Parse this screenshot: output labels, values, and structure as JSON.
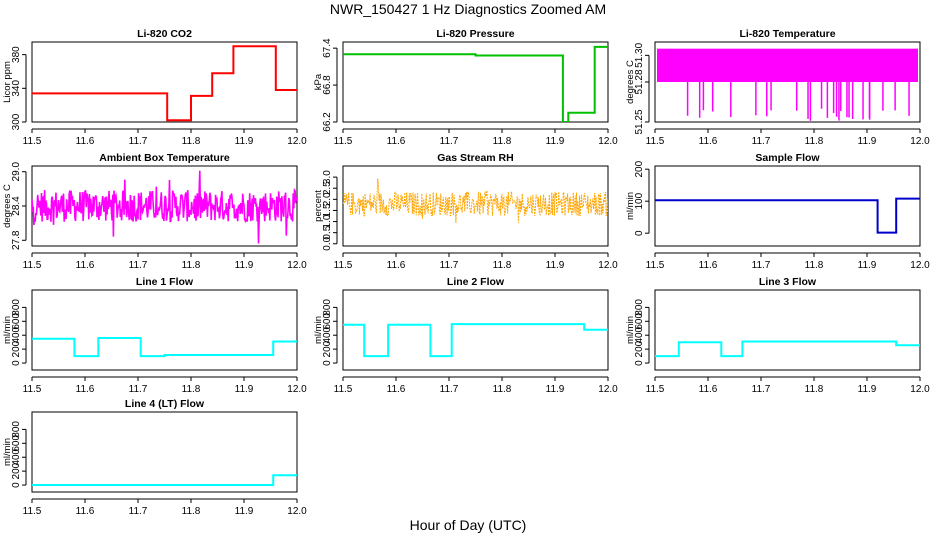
{
  "title": "NWR_150427  1 Hz Diagnostics Zoomed AM",
  "xlabel": "Hour of Day (UTC)",
  "chart_data": [
    {
      "type": "line",
      "title": "Li-820 CO2",
      "ylabel": "Licor ppm",
      "color": "#ff0000",
      "xlim": [
        11.5,
        12.0
      ],
      "ylim": [
        300,
        395
      ],
      "xticks": [
        11.5,
        11.6,
        11.7,
        11.8,
        11.9,
        12.0
      ],
      "yticks": [
        300,
        340,
        380
      ],
      "series": [
        {
          "x": [
            11.5,
            11.755,
            11.755,
            11.8,
            11.8,
            11.84,
            11.84,
            11.88,
            11.88,
            11.96,
            11.96,
            12.0
          ],
          "y": [
            334,
            334,
            302,
            302,
            331,
            331,
            358,
            358,
            390,
            390,
            338,
            338
          ]
        }
      ]
    },
    {
      "type": "line",
      "title": "Li-820 Pressure",
      "ylabel": "kPa",
      "color": "#00c000",
      "xlim": [
        11.5,
        12.0
      ],
      "ylim": [
        66.2,
        67.5
      ],
      "xticks": [
        11.5,
        11.6,
        11.7,
        11.8,
        11.9,
        12.0
      ],
      "yticks": [
        66.2,
        66.8,
        67.4
      ],
      "series": [
        {
          "x": [
            11.5,
            11.75,
            11.75,
            11.915,
            11.915,
            11.925,
            11.925,
            11.96,
            11.96,
            11.975,
            11.975,
            12.0
          ],
          "y": [
            67.3,
            67.3,
            67.28,
            67.28,
            66.2,
            66.2,
            66.35,
            66.35,
            66.35,
            66.35,
            67.42,
            67.42
          ]
        }
      ]
    },
    {
      "type": "line",
      "title": "Li-820 Temperature",
      "ylabel": "degrees C",
      "color": "#ff00ff",
      "xlim": [
        11.5,
        12.0
      ],
      "ylim": [
        51.25,
        51.31
      ],
      "xticks": [
        11.5,
        11.6,
        11.7,
        11.8,
        11.9,
        12.0
      ],
      "yticks": [
        51.25,
        51.28,
        51.3
      ],
      "series": [
        {
          "x": [
            11.5,
            12.0
          ],
          "y": [
            51.29,
            51.29
          ]
        }
      ]
    },
    {
      "type": "line",
      "title": "Ambient Box Temperature",
      "ylabel": "degrees C",
      "color": "#ff00ff",
      "xlim": [
        11.5,
        12.0
      ],
      "ylim": [
        27.7,
        29.1
      ],
      "xticks": [
        11.5,
        11.6,
        11.7,
        11.8,
        11.9,
        12.0
      ],
      "yticks": [
        27.8,
        28.4,
        29.0
      ],
      "series": [
        {
          "x": [
            11.5,
            12.0
          ],
          "y": [
            28.4,
            28.4
          ]
        }
      ]
    },
    {
      "type": "line",
      "title": "Gas Stream RH",
      "ylabel": "percent",
      "color": "#ffa500",
      "xlim": [
        11.5,
        12.0
      ],
      "ylim": [
        -0.1,
        3.5
      ],
      "xticks": [
        11.5,
        11.6,
        11.7,
        11.8,
        11.9,
        12.0
      ],
      "yticks": [
        0.0,
        0.5,
        1.0,
        1.5,
        2.0,
        2.5,
        3.0
      ],
      "series": [
        {
          "x": [
            11.5,
            12.0
          ],
          "y": [
            1.8,
            1.8
          ]
        }
      ]
    },
    {
      "type": "line",
      "title": "Sample Flow",
      "ylabel": "ml/min",
      "color": "#0000cc",
      "xlim": [
        11.5,
        12.0
      ],
      "ylim": [
        -40,
        210
      ],
      "xticks": [
        11.5,
        11.6,
        11.7,
        11.8,
        11.9,
        12.0
      ],
      "yticks": [
        0,
        100,
        200
      ],
      "series": [
        {
          "x": [
            11.5,
            11.92,
            11.92,
            11.955,
            11.955,
            12.0
          ],
          "y": [
            103,
            103,
            2,
            2,
            108,
            108
          ]
        }
      ]
    },
    {
      "type": "line",
      "title": "Line 1 Flow",
      "ylabel": "ml/min",
      "color": "#00ffff",
      "xlim": [
        11.5,
        12.0
      ],
      "ylim": [
        -100,
        1050
      ],
      "xticks": [
        11.5,
        11.6,
        11.7,
        11.8,
        11.9,
        12.0
      ],
      "yticks": [
        0,
        200,
        400,
        600,
        800
      ],
      "series": [
        {
          "x": [
            11.5,
            11.58,
            11.58,
            11.625,
            11.625,
            11.705,
            11.705,
            11.75,
            11.75,
            11.955,
            11.955,
            12.0
          ],
          "y": [
            350,
            350,
            100,
            100,
            360,
            360,
            100,
            100,
            115,
            115,
            310,
            310
          ]
        }
      ]
    },
    {
      "type": "line",
      "title": "Line 2 Flow",
      "ylabel": "ml/min",
      "color": "#00ffff",
      "xlim": [
        11.5,
        12.0
      ],
      "ylim": [
        -100,
        1050
      ],
      "xticks": [
        11.5,
        11.6,
        11.7,
        11.8,
        11.9,
        12.0
      ],
      "yticks": [
        0,
        200,
        400,
        600,
        800
      ],
      "series": [
        {
          "x": [
            11.5,
            11.54,
            11.54,
            11.585,
            11.585,
            11.665,
            11.665,
            11.705,
            11.705,
            11.955,
            11.955,
            12.0
          ],
          "y": [
            550,
            550,
            100,
            100,
            550,
            550,
            100,
            100,
            560,
            560,
            480,
            480
          ]
        }
      ]
    },
    {
      "type": "line",
      "title": "Line 3 Flow",
      "ylabel": "ml/min",
      "color": "#00ffff",
      "xlim": [
        11.5,
        12.0
      ],
      "ylim": [
        -100,
        1050
      ],
      "xticks": [
        11.5,
        11.6,
        11.7,
        11.8,
        11.9,
        12.0
      ],
      "yticks": [
        0,
        200,
        400,
        600,
        800
      ],
      "series": [
        {
          "x": [
            11.5,
            11.545,
            11.545,
            11.625,
            11.625,
            11.665,
            11.665,
            11.955,
            11.955,
            12.0
          ],
          "y": [
            100,
            100,
            300,
            300,
            100,
            100,
            310,
            310,
            255,
            255
          ]
        }
      ]
    },
    {
      "type": "line",
      "title": "Line 4 (LT) Flow",
      "ylabel": "ml/min",
      "color": "#00ffff",
      "xlim": [
        11.5,
        12.0
      ],
      "ylim": [
        -100,
        1050
      ],
      "xticks": [
        11.5,
        11.6,
        11.7,
        11.8,
        11.9,
        12.0
      ],
      "yticks": [
        0,
        200,
        400,
        600,
        800
      ],
      "series": [
        {
          "x": [
            11.5,
            11.955,
            11.955,
            12.0
          ],
          "y": [
            0,
            0,
            140,
            140
          ]
        }
      ]
    }
  ]
}
